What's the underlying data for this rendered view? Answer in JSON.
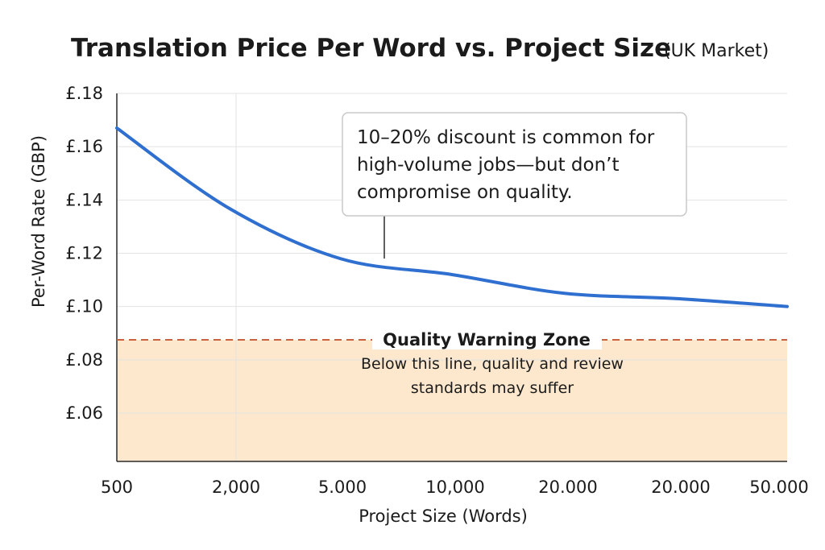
{
  "chart_data": {
    "type": "line",
    "title": "Translation Price Per Word vs. Project Size",
    "subtitle": "(UK Market)",
    "xlabel": "Project Size (Words)",
    "ylabel": "Per-Word Rate (GBP)",
    "x_tick_labels": [
      "500",
      "2,000",
      "5.000",
      "10,000",
      "20.000",
      "20.000",
      "50.000"
    ],
    "y_ticks": [
      {
        "value": 0.18,
        "label": "£.18"
      },
      {
        "value": 0.16,
        "label": "£.16"
      },
      {
        "value": 0.14,
        "label": "£.14"
      },
      {
        "value": 0.12,
        "label": "£.12"
      },
      {
        "value": 0.1,
        "label": "£.10"
      },
      {
        "value": 0.08,
        "label": "£.08"
      },
      {
        "value": 0.06,
        "label": "£.06"
      }
    ],
    "ylim": [
      0.05,
      0.18
    ],
    "grid": true,
    "series": [
      {
        "x": [
          "500",
          "2,000",
          "5.000",
          "10,000",
          "20.000",
          "20.000",
          "50.000"
        ],
        "values": [
          0.167,
          0.137,
          0.118,
          0.112,
          0.105,
          0.103,
          0.1
        ],
        "color": "#2f6fcf"
      }
    ],
    "threshold": {
      "value": 0.0875,
      "color": "#c8623f",
      "fill_color": "#fde8cd",
      "title": "Quality Warning Zone",
      "text": [
        "Below this line, quality and review",
        "standards may suffer"
      ]
    },
    "annotation": {
      "text": [
        "10–20% discount is common for",
        "high-volume jobs—but don’t",
        "compromise on quality."
      ],
      "point_x": "5.000",
      "point_value": 0.118
    }
  }
}
